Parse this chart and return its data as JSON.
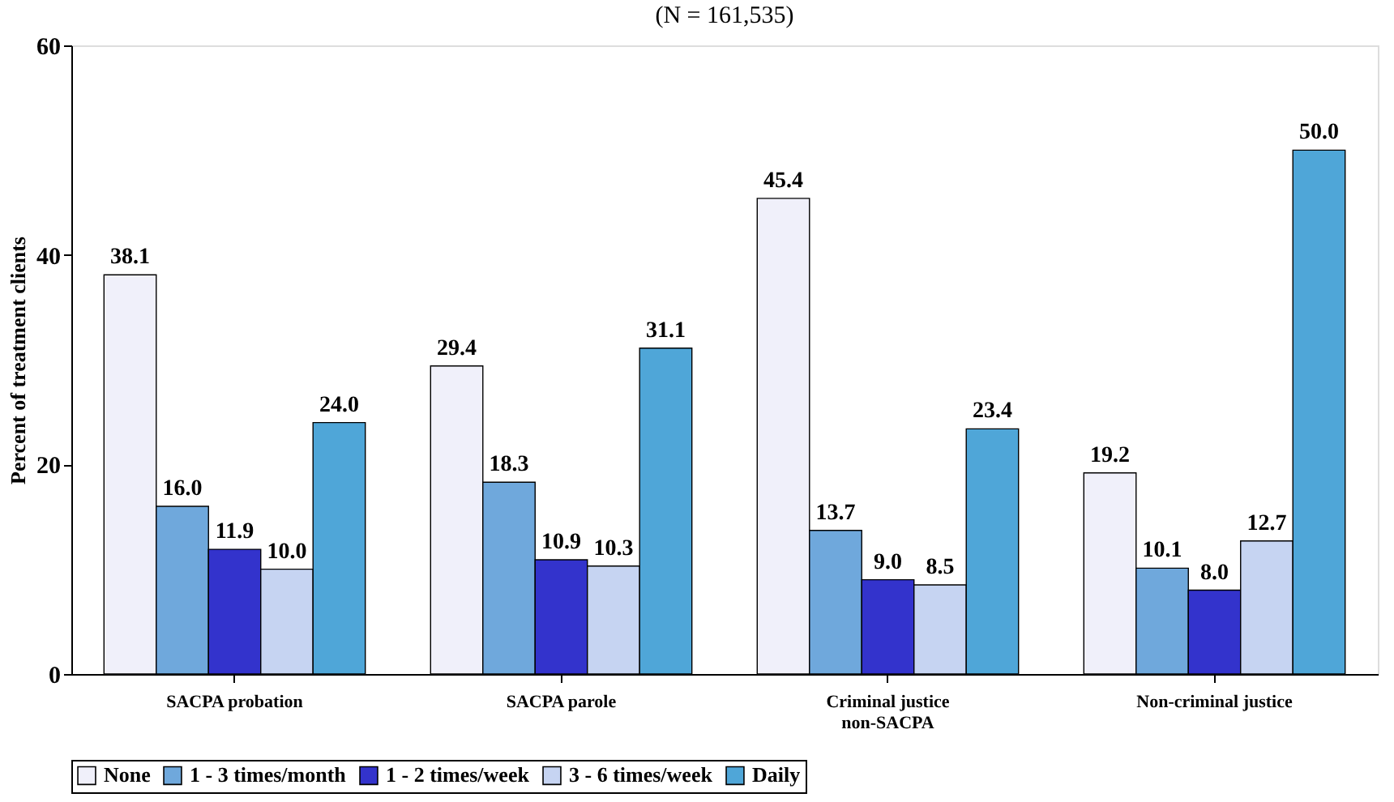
{
  "chart_data": {
    "type": "bar",
    "title": "(N = 161,535)",
    "ylabel": "Percent of treatment clients",
    "categories": [
      "SACPA probation",
      "SACPA parole",
      "Criminal justice\nnon-SACPA",
      "Non-criminal justice"
    ],
    "series": [
      {
        "name": "None",
        "color": "#f0f0fa",
        "values": [
          38.1,
          29.4,
          45.4,
          19.2
        ],
        "value_labels": [
          "38.1",
          "29.4",
          "45.4",
          "19.2"
        ]
      },
      {
        "name": "1 - 3 times/month",
        "color": "#6fa8dc",
        "values": [
          16.0,
          18.3,
          13.7,
          10.1
        ],
        "value_labels": [
          "16.0",
          "18.3",
          "13.7",
          "10.1"
        ]
      },
      {
        "name": "1 - 2 times/week",
        "color": "#3333cc",
        "values": [
          11.9,
          10.9,
          9.0,
          8.0
        ],
        "value_labels": [
          "11.9",
          "10.9",
          "9.0",
          "8.0"
        ]
      },
      {
        "name": "3 - 6 times/week",
        "color": "#c6d4f2",
        "values": [
          10.0,
          10.3,
          8.5,
          12.7
        ],
        "value_labels": [
          "10.0",
          "10.3",
          "8.5",
          "12.7"
        ]
      },
      {
        "name": "Daily",
        "color": "#4fa6d8",
        "values": [
          24.0,
          31.1,
          23.4,
          50.0
        ],
        "value_labels": [
          "24.0",
          "31.1",
          "23.4",
          "50.0"
        ]
      }
    ],
    "ylim": [
      0,
      60
    ],
    "yticks": [
      0,
      20,
      40,
      60
    ],
    "grid": false,
    "legend": "bottom"
  }
}
